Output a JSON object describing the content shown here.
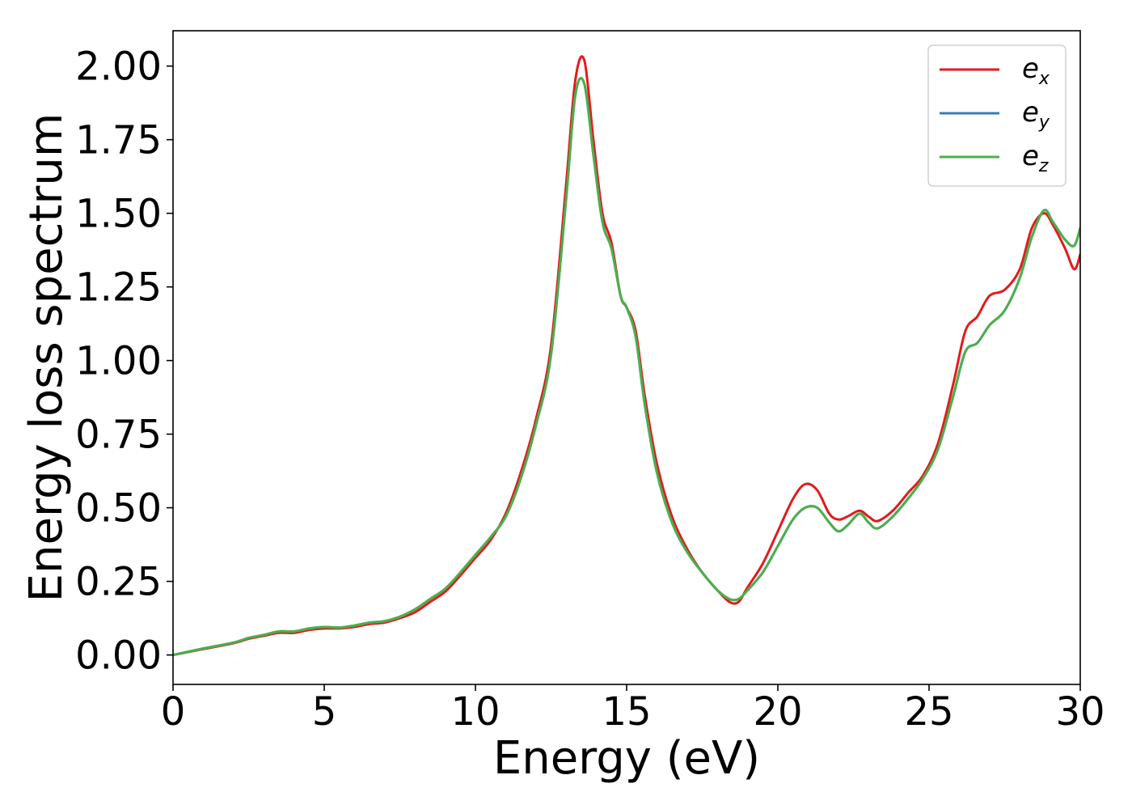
{
  "chart_data": {
    "type": "line",
    "xlabel": "Energy (eV)",
    "ylabel": "Energy loss spectrum",
    "xlim": [
      0,
      30
    ],
    "ylim": [
      -0.1,
      2.12
    ],
    "xticks": [
      0,
      5,
      10,
      15,
      20,
      25,
      30
    ],
    "xtick_labels": [
      "0",
      "5",
      "10",
      "15",
      "20",
      "25",
      "30"
    ],
    "yticks": [
      0.0,
      0.25,
      0.5,
      0.75,
      1.0,
      1.25,
      1.5,
      1.75,
      2.0
    ],
    "ytick_labels": [
      "0.00",
      "0.25",
      "0.50",
      "0.75",
      "1.00",
      "1.25",
      "1.50",
      "1.75",
      "2.00"
    ],
    "grid": false,
    "legend_position": "top-right",
    "series": [
      {
        "name": "e_x",
        "label_main": "e",
        "label_sub": "x",
        "color": "#e41a1c",
        "x": [
          0,
          1,
          2,
          2.5,
          3,
          3.5,
          4,
          4.5,
          5,
          5.5,
          6,
          6.5,
          7,
          7.5,
          8,
          8.5,
          9,
          9.5,
          10,
          10.5,
          11,
          11.5,
          12,
          12.5,
          13,
          13.3,
          13.6,
          13.9,
          14.2,
          14.5,
          14.8,
          15.0,
          15.3,
          15.6,
          16.0,
          16.5,
          17.0,
          17.5,
          18.0,
          18.4,
          18.7,
          19.0,
          19.5,
          20.0,
          20.5,
          20.9,
          21.3,
          21.7,
          22.0,
          22.3,
          22.7,
          23.0,
          23.3,
          23.8,
          24.3,
          24.8,
          25.3,
          25.8,
          26.2,
          26.6,
          27.0,
          27.5,
          28.0,
          28.4,
          28.8,
          29.1,
          29.5,
          29.8,
          30.0
        ],
        "values": [
          0,
          0.02,
          0.04,
          0.055,
          0.065,
          0.075,
          0.075,
          0.085,
          0.09,
          0.09,
          0.095,
          0.105,
          0.11,
          0.125,
          0.145,
          0.18,
          0.215,
          0.27,
          0.33,
          0.39,
          0.48,
          0.62,
          0.8,
          1.05,
          1.6,
          1.95,
          2.02,
          1.75,
          1.5,
          1.4,
          1.22,
          1.18,
          1.1,
          0.88,
          0.65,
          0.47,
          0.36,
          0.28,
          0.22,
          0.18,
          0.18,
          0.23,
          0.31,
          0.42,
          0.53,
          0.58,
          0.56,
          0.48,
          0.46,
          0.47,
          0.49,
          0.47,
          0.455,
          0.49,
          0.55,
          0.61,
          0.72,
          0.92,
          1.1,
          1.15,
          1.22,
          1.24,
          1.31,
          1.45,
          1.5,
          1.46,
          1.38,
          1.31,
          1.36
        ]
      },
      {
        "name": "e_y",
        "label_main": "e",
        "label_sub": "y",
        "color": "#377eb8",
        "x": [
          0,
          1,
          2,
          2.5,
          3,
          3.5,
          4,
          4.5,
          5,
          5.5,
          6,
          6.5,
          7,
          7.5,
          8,
          8.5,
          9,
          9.5,
          10,
          10.5,
          11,
          11.5,
          12,
          12.5,
          13,
          13.3,
          13.6,
          13.9,
          14.2,
          14.5,
          14.8,
          15.0,
          15.3,
          15.6,
          16.0,
          16.5,
          17.0,
          17.5,
          18.0,
          18.4,
          18.7,
          19.0,
          19.5,
          20.0,
          20.5,
          20.9,
          21.3,
          21.7,
          22.0,
          22.3,
          22.7,
          23.0,
          23.3,
          23.8,
          24.3,
          24.8,
          25.3,
          25.8,
          26.2,
          26.6,
          27.0,
          27.5,
          28.0,
          28.4,
          28.8,
          29.1,
          29.5,
          29.8,
          30.0
        ],
        "values": [
          0,
          0.022,
          0.042,
          0.058,
          0.068,
          0.08,
          0.08,
          0.09,
          0.095,
          0.093,
          0.1,
          0.11,
          0.115,
          0.13,
          0.155,
          0.19,
          0.225,
          0.28,
          0.34,
          0.4,
          0.47,
          0.6,
          0.78,
          1.02,
          1.55,
          1.9,
          1.94,
          1.7,
          1.47,
          1.38,
          1.22,
          1.18,
          1.08,
          0.85,
          0.62,
          0.45,
          0.35,
          0.28,
          0.22,
          0.19,
          0.19,
          0.22,
          0.28,
          0.37,
          0.46,
          0.5,
          0.5,
          0.45,
          0.42,
          0.44,
          0.48,
          0.45,
          0.43,
          0.47,
          0.53,
          0.6,
          0.7,
          0.88,
          1.03,
          1.06,
          1.12,
          1.17,
          1.28,
          1.42,
          1.51,
          1.47,
          1.41,
          1.39,
          1.45
        ]
      },
      {
        "name": "e_z",
        "label_main": "e",
        "label_sub": "z",
        "color": "#4daf4a",
        "x": [
          0,
          1,
          2,
          2.5,
          3,
          3.5,
          4,
          4.5,
          5,
          5.5,
          6,
          6.5,
          7,
          7.5,
          8,
          8.5,
          9,
          9.5,
          10,
          10.5,
          11,
          11.5,
          12,
          12.5,
          13,
          13.3,
          13.6,
          13.9,
          14.2,
          14.5,
          14.8,
          15.0,
          15.3,
          15.6,
          16.0,
          16.5,
          17.0,
          17.5,
          18.0,
          18.4,
          18.7,
          19.0,
          19.5,
          20.0,
          20.5,
          20.9,
          21.3,
          21.7,
          22.0,
          22.3,
          22.7,
          23.0,
          23.3,
          23.8,
          24.3,
          24.8,
          25.3,
          25.8,
          26.2,
          26.6,
          27.0,
          27.5,
          28.0,
          28.4,
          28.8,
          29.1,
          29.5,
          29.8,
          30.0
        ],
        "values": [
          0,
          0.022,
          0.042,
          0.058,
          0.068,
          0.08,
          0.08,
          0.09,
          0.095,
          0.093,
          0.1,
          0.11,
          0.115,
          0.13,
          0.155,
          0.19,
          0.225,
          0.28,
          0.34,
          0.4,
          0.47,
          0.6,
          0.78,
          1.02,
          1.55,
          1.9,
          1.94,
          1.7,
          1.47,
          1.38,
          1.22,
          1.18,
          1.08,
          0.85,
          0.62,
          0.45,
          0.35,
          0.28,
          0.22,
          0.19,
          0.19,
          0.22,
          0.28,
          0.37,
          0.46,
          0.5,
          0.5,
          0.45,
          0.42,
          0.44,
          0.48,
          0.45,
          0.43,
          0.47,
          0.53,
          0.6,
          0.7,
          0.88,
          1.03,
          1.06,
          1.12,
          1.17,
          1.28,
          1.42,
          1.51,
          1.47,
          1.41,
          1.39,
          1.45
        ]
      }
    ]
  }
}
